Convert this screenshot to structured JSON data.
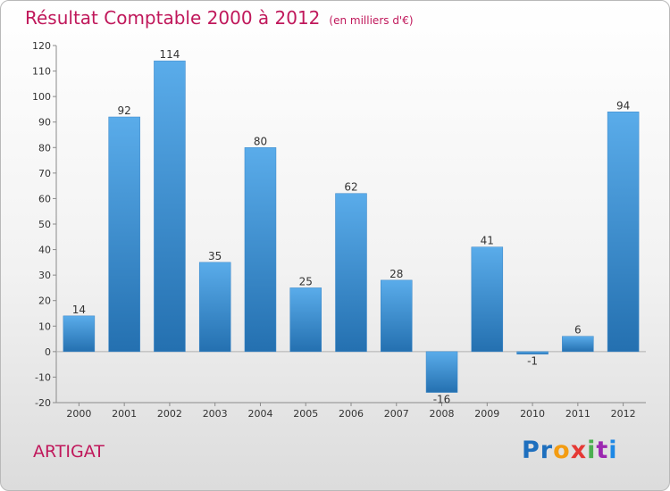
{
  "header": {
    "title": "Résultat Comptable 2000 à 2012",
    "unit": "(en milliers d'€)"
  },
  "footer": {
    "commune": "ARTIGAT",
    "brand": "Proxiti"
  },
  "colors": {
    "title": "#c0185b",
    "bar_top": "#5aacea",
    "bar_bottom": "#2470b0",
    "logo_letters": [
      "#1e6fbe",
      "#1e6fbe",
      "#f39c12",
      "#e53935",
      "#4caf50",
      "#9c27b0",
      "#1e88e5"
    ]
  },
  "chart_data": {
    "type": "bar",
    "categories": [
      "2000",
      "2001",
      "2002",
      "2003",
      "2004",
      "2005",
      "2006",
      "2007",
      "2008",
      "2009",
      "2010",
      "2011",
      "2012"
    ],
    "values": [
      14,
      92,
      114,
      35,
      80,
      25,
      62,
      28,
      -16,
      41,
      -1,
      6,
      94
    ],
    "data_labels": [
      "14",
      "92",
      "114",
      "35",
      "80",
      "25",
      "62",
      "28",
      "-16",
      "41",
      "-1",
      "6",
      "94"
    ],
    "ylim": [
      -20,
      120
    ],
    "yticks": [
      -20,
      -10,
      0,
      10,
      20,
      30,
      40,
      50,
      60,
      70,
      80,
      90,
      100,
      110,
      120
    ],
    "grid": false,
    "title": "Résultat Comptable 2000 à 2012",
    "xlabel": "",
    "ylabel": ""
  }
}
